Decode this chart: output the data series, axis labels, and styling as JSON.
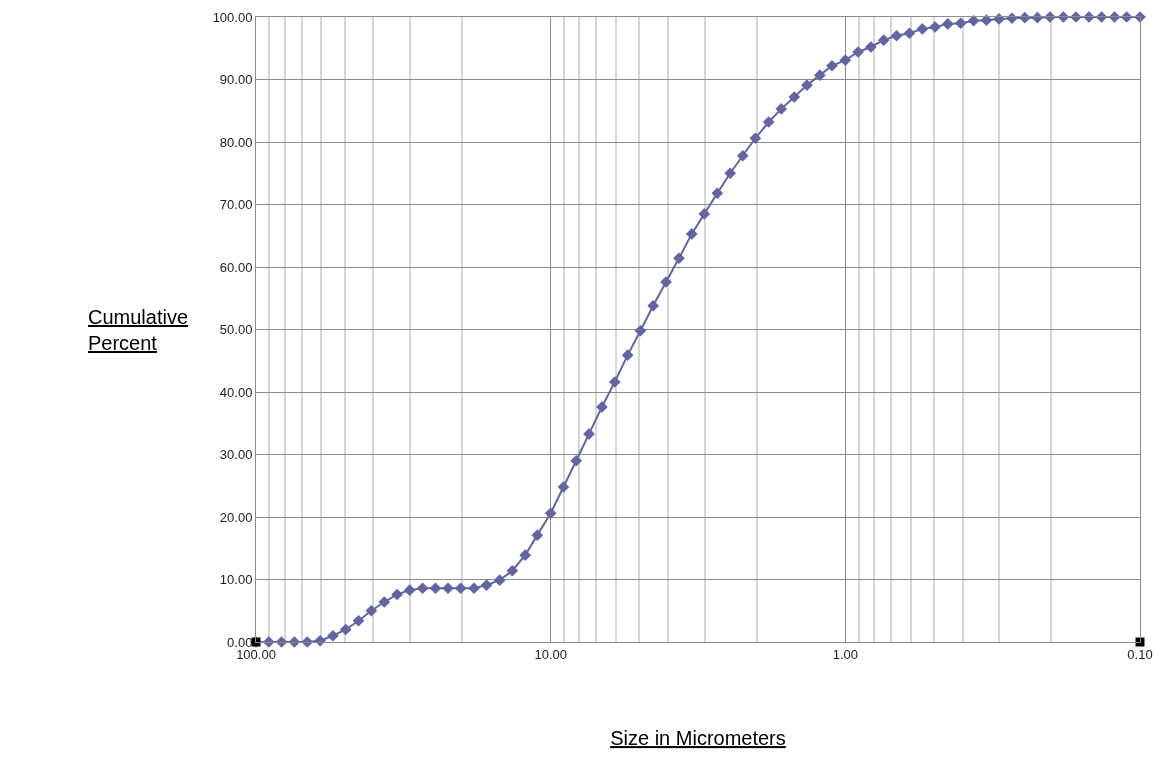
{
  "chart_data": {
    "type": "line",
    "xlabel": "Size in Micrometers",
    "ylabel": "Cumulative Percent",
    "log": "x",
    "xlim": [
      100,
      0.1
    ],
    "xticks": [
      {
        "value": 100,
        "label": "100.00"
      },
      {
        "value": 10,
        "label": "10.00"
      },
      {
        "value": 1,
        "label": "1.00"
      },
      {
        "value": 0.1,
        "label": "0.10"
      }
    ],
    "ylim": [
      0,
      100
    ],
    "yticks": [
      {
        "value": 0,
        "label": "0.00"
      },
      {
        "value": 10,
        "label": "10.00"
      },
      {
        "value": 20,
        "label": "20.00"
      },
      {
        "value": 30,
        "label": "30.00"
      },
      {
        "value": 40,
        "label": "40.00"
      },
      {
        "value": 50,
        "label": "50.00"
      },
      {
        "value": 60,
        "label": "60.00"
      },
      {
        "value": 70,
        "label": "70.00"
      },
      {
        "value": 80,
        "label": "80.00"
      },
      {
        "value": 90,
        "label": "90.00"
      },
      {
        "value": 100,
        "label": "100.00"
      }
    ],
    "grid": true,
    "marker": "diamond",
    "line_style": "solid",
    "series": [
      {
        "color": "#6265a0",
        "x": [
          100,
          90.5,
          81.9,
          74.1,
          67.0,
          60.6,
          54.8,
          49.6,
          44.9,
          40.6,
          36.7,
          33.2,
          30.1,
          27.2,
          24.6,
          22.3,
          20.2,
          18.2,
          16.5,
          14.9,
          13.5,
          12.2,
          11.1,
          10.0,
          9.05,
          8.19,
          7.41,
          6.7,
          6.06,
          5.48,
          4.96,
          4.49,
          4.06,
          3.67,
          3.32,
          3.01,
          2.72,
          2.46,
          2.23,
          2.02,
          1.82,
          1.65,
          1.49,
          1.35,
          1.22,
          1.11,
          1.0,
          0.905,
          0.819,
          0.741,
          0.67,
          0.606,
          0.548,
          0.496,
          0.449,
          0.406,
          0.367,
          0.332,
          0.301,
          0.272,
          0.246,
          0.223,
          0.202,
          0.182,
          0.165,
          0.149,
          0.135,
          0.122,
          0.111,
          0.1
        ],
        "values": [
          0,
          0,
          0,
          0,
          0,
          0.2,
          1.0,
          2.0,
          3.4,
          5.0,
          6.4,
          7.6,
          8.3,
          8.6,
          8.6,
          8.6,
          8.6,
          8.6,
          9.1,
          9.9,
          11.4,
          13.9,
          17.1,
          20.6,
          24.8,
          29.0,
          33.3,
          37.6,
          41.6,
          45.9,
          49.8,
          53.8,
          57.6,
          61.4,
          65.3,
          68.5,
          71.8,
          75.0,
          77.8,
          80.6,
          83.2,
          85.3,
          87.2,
          89.1,
          90.7,
          92.2,
          93.1,
          94.4,
          95.2,
          96.3,
          97.0,
          97.4,
          98.1,
          98.4,
          98.9,
          99.0,
          99.4,
          99.5,
          99.7,
          99.8,
          99.9,
          99.9,
          100,
          100,
          100,
          100,
          100,
          100,
          100,
          100
        ]
      },
      {
        "type": "scatter",
        "marker": "square",
        "color": "#000000",
        "x": [
          100,
          0.1
        ],
        "values": [
          0,
          0
        ]
      }
    ]
  }
}
